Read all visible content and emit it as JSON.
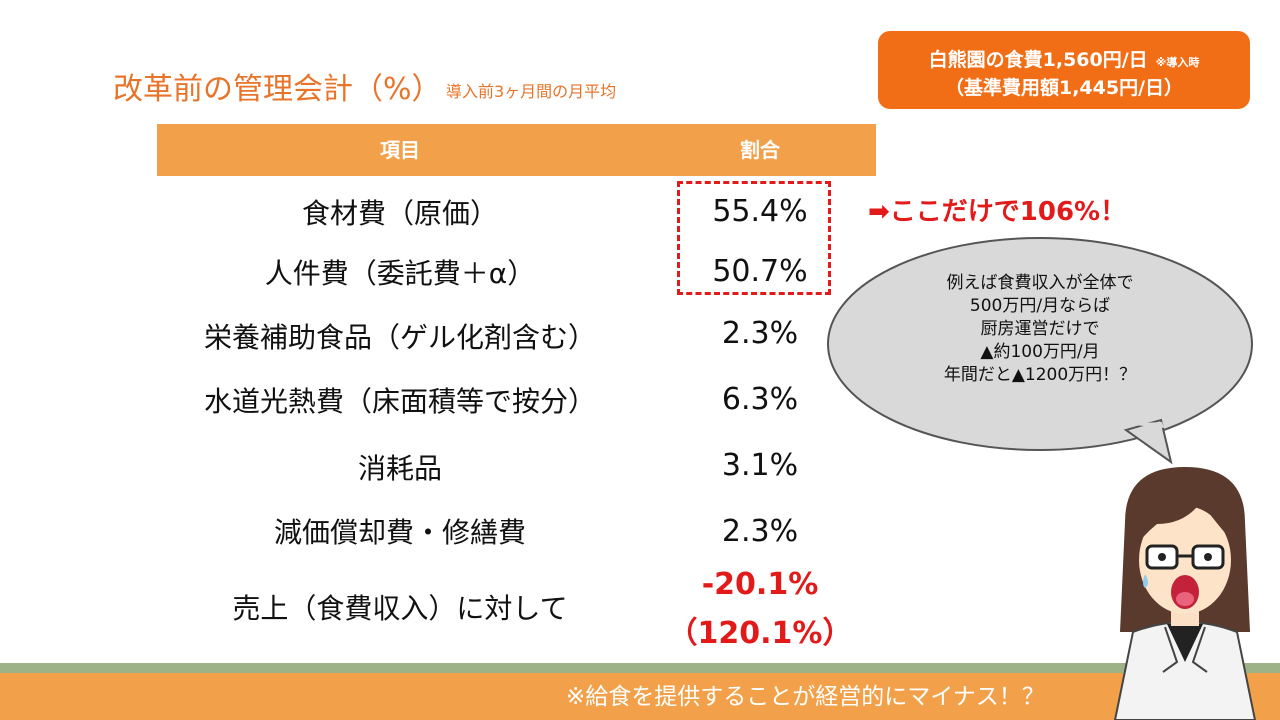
{
  "header": {
    "title": "改革前の管理会計（%）",
    "subtitle": "導入前3ヶ月間の月平均"
  },
  "info_box": {
    "line1": "白熊園の食費1,560円/日",
    "line1_note": "※導入時",
    "line2": "（基準費用額1,445円/日）"
  },
  "table": {
    "col_item": "項目",
    "col_ratio": "割合",
    "rows": [
      {
        "label": "食材費（原価）",
        "value": "55.4%"
      },
      {
        "label": "人件費（委託費＋α）",
        "value": "50.7%"
      },
      {
        "label": "栄養補助食品（ゲル化剤含む）",
        "value": "2.3%"
      },
      {
        "label": "水道光熱費（床面積等で按分）",
        "value": "6.3%"
      },
      {
        "label": "消耗品",
        "value": "3.1%"
      },
      {
        "label": "減価償却費・修繕費",
        "value": "2.3%"
      },
      {
        "label": "売上（食費収入）に対して",
        "value": "-20.1%",
        "value2": "（120.1%）"
      }
    ]
  },
  "callout": "➡ここだけで106%！",
  "bubble": {
    "lines": [
      "例えば食費収入が全体で",
      "500万円/月ならば",
      "厨房運営だけで",
      "▲約100万円/月",
      "年間だと▲1200万円！？"
    ]
  },
  "footer": "※給食を提供することが経営的にマイナス！？",
  "colors": {
    "accent": "#e8742a",
    "header_bar": "#f2a14a",
    "alert": "#e21a1a",
    "box": "#f26e16",
    "band_green": "#9db387"
  }
}
